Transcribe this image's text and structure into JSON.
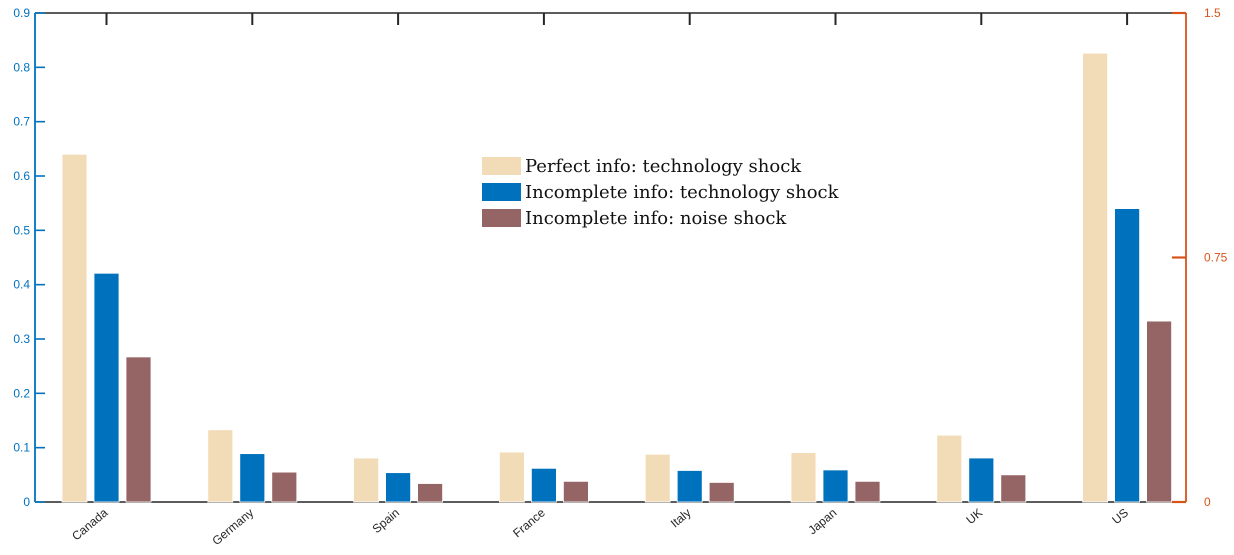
{
  "chart_data": {
    "type": "bar",
    "categories": [
      "Canada",
      "Germany",
      "Spain",
      "France",
      "Italy",
      "Japan",
      "UK",
      "US"
    ],
    "series": [
      {
        "name": "Perfect info: technology shock",
        "color": "#f2dcb8",
        "values": [
          0.64,
          0.133,
          0.081,
          0.092,
          0.088,
          0.091,
          0.123,
          0.826
        ]
      },
      {
        "name": "Incomplete info: technology shock",
        "color": "#0072bd",
        "values": [
          0.421,
          0.089,
          0.054,
          0.062,
          0.058,
          0.059,
          0.081,
          0.54
        ]
      },
      {
        "name": "Incomplete info: noise shock",
        "color": "#956464",
        "values": [
          0.267,
          0.055,
          0.034,
          0.038,
          0.036,
          0.038,
          0.05,
          0.333
        ]
      }
    ],
    "y_left": {
      "ylim": [
        0,
        0.9
      ],
      "ticks": [
        0,
        0.1,
        0.2,
        0.3,
        0.4,
        0.5,
        0.6,
        0.7,
        0.8,
        0.9
      ],
      "tick_labels": [
        "0",
        "0.1",
        "0.2",
        "0.3",
        "0.4",
        "0.5",
        "0.6",
        "0.7",
        "0.8",
        "0.9"
      ],
      "color": "#0072bd"
    },
    "y_right": {
      "ylim": [
        0,
        1.5
      ],
      "ticks": [
        0,
        0.75,
        1.5
      ],
      "tick_labels": [
        "0",
        "0.75",
        "1.5"
      ],
      "color": "#d95319"
    },
    "xlabel": "",
    "ylabel": "",
    "title": "",
    "grid": false,
    "legend_position": "center-top",
    "axis_color": "#262626"
  }
}
